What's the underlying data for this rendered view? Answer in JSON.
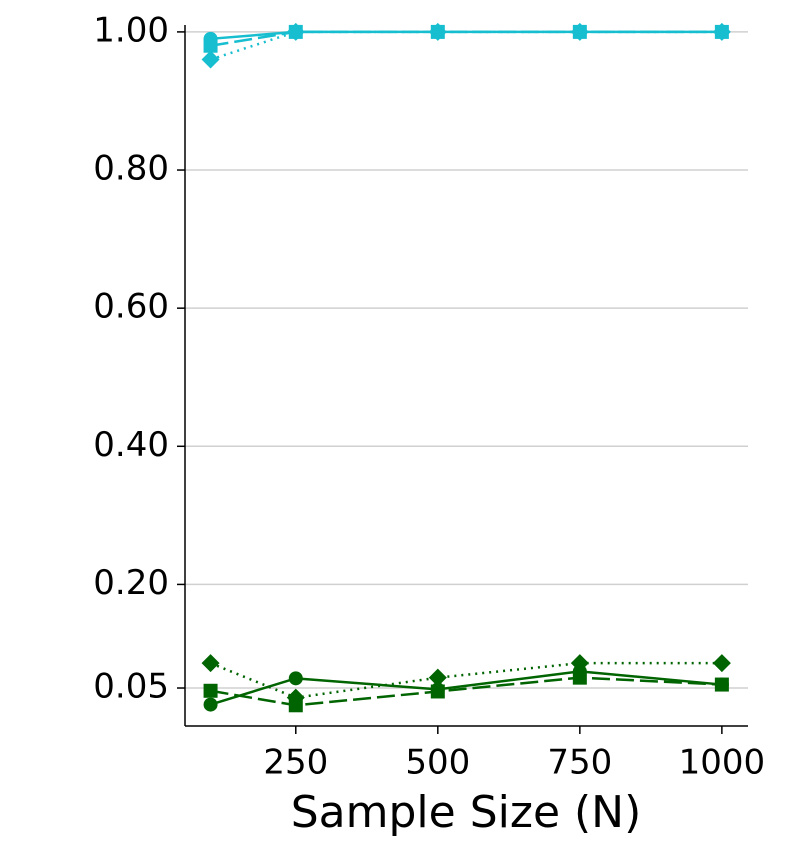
{
  "chart_data": {
    "type": "line",
    "x_label": "Sample Size (N)",
    "x": [
      100,
      250,
      500,
      750,
      1000
    ],
    "xlim": [
      55,
      1046
    ],
    "xticks": [
      250,
      500,
      750,
      1000
    ],
    "ylim": [
      -0.005,
      1.01
    ],
    "yticks": [
      {
        "value": 0.05,
        "label": "0.05"
      },
      {
        "value": 0.2,
        "label": "0.20"
      },
      {
        "value": 0.4,
        "label": "0.40"
      },
      {
        "value": 0.6,
        "label": "0.60"
      },
      {
        "value": 0.8,
        "label": "0.80"
      },
      {
        "value": 1.0,
        "label": "1.00"
      }
    ],
    "grid": true,
    "series": [
      {
        "color": "#17becf",
        "marker": "circle",
        "dash": "solid",
        "values": [
          0.99,
          1.0,
          1.0,
          1.0,
          1.0
        ]
      },
      {
        "color": "#17becf",
        "marker": "square",
        "dash": "dashed",
        "values": [
          0.98,
          1.0,
          1.0,
          1.0,
          1.0
        ]
      },
      {
        "color": "#17becf",
        "marker": "diamond",
        "dash": "dotted",
        "values": [
          0.96,
          1.0,
          1.0,
          1.0,
          1.0
        ]
      },
      {
        "color": "#006400",
        "marker": "circle",
        "dash": "solid",
        "values": [
          0.026,
          0.064,
          0.048,
          0.074,
          0.055
        ]
      },
      {
        "color": "#006400",
        "marker": "square",
        "dash": "dashed",
        "values": [
          0.046,
          0.025,
          0.045,
          0.065,
          0.055
        ]
      },
      {
        "color": "#006400",
        "marker": "diamond",
        "dash": "dotted",
        "values": [
          0.086,
          0.036,
          0.065,
          0.086,
          0.086
        ]
      }
    ]
  }
}
